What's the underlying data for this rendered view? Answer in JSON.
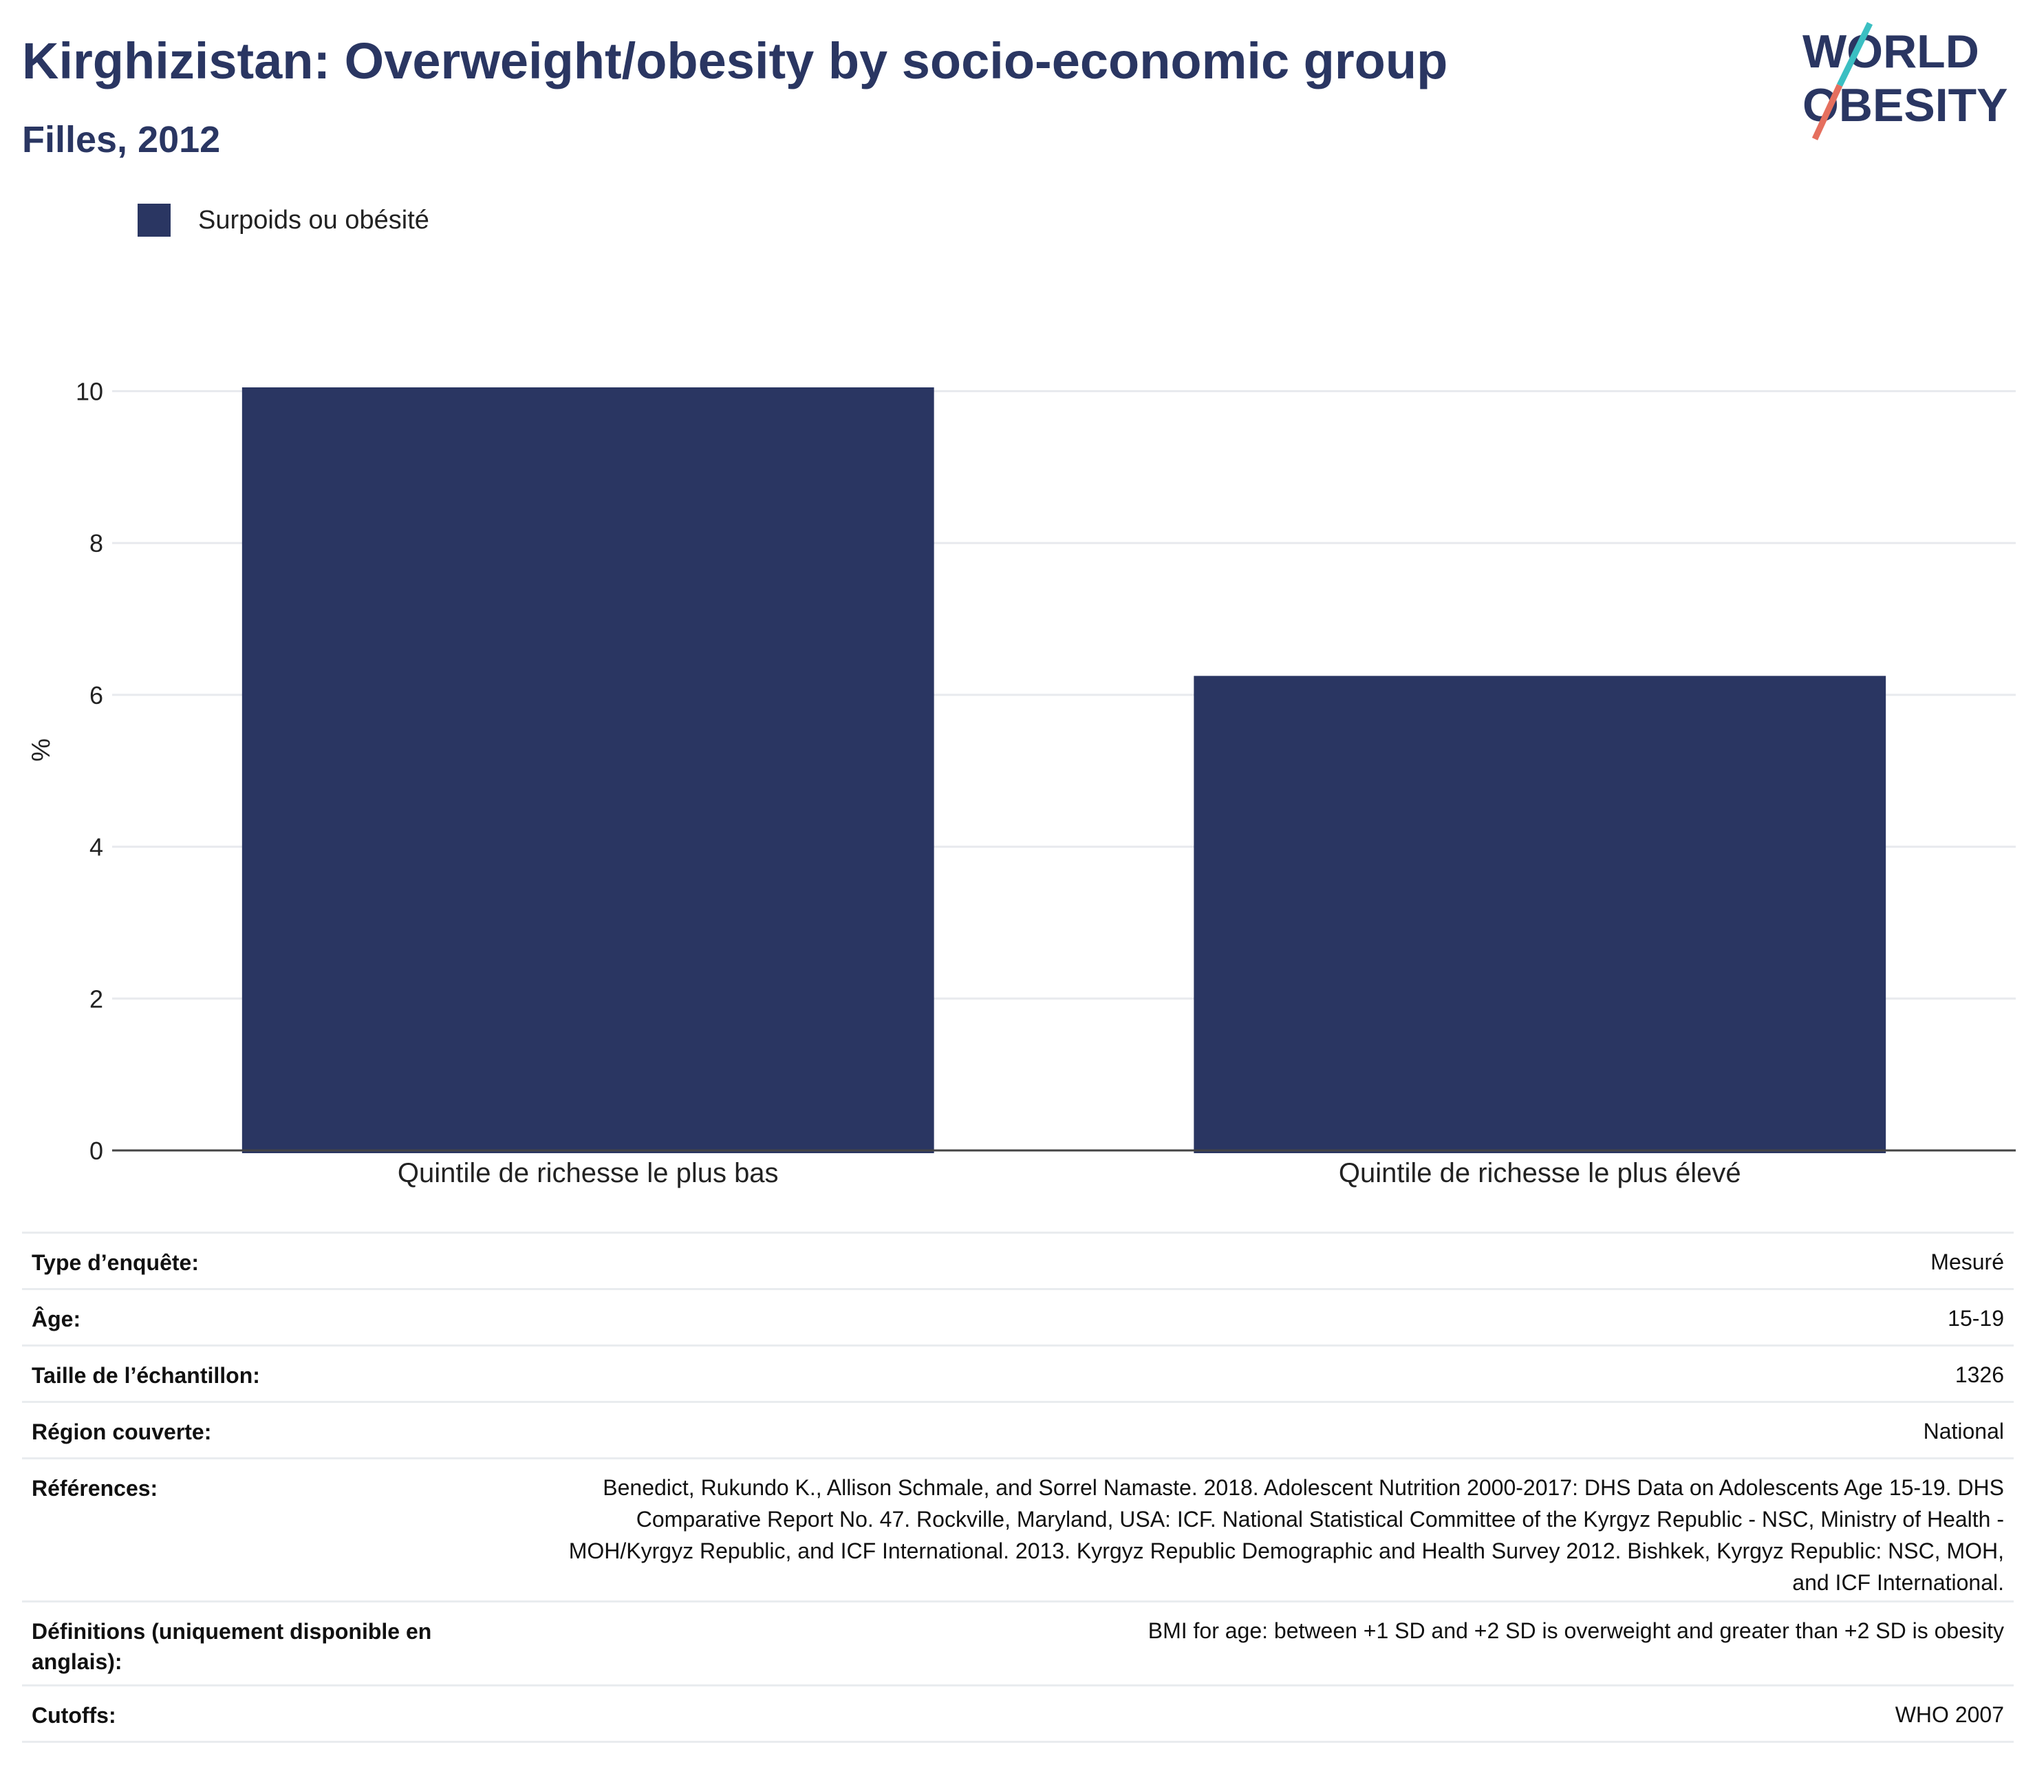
{
  "header": {
    "title": "Kirghizistan: Overweight/obesity by socio-economic group",
    "subtitle": "Filles, 2012"
  },
  "logo": {
    "line1": "WORLD",
    "line2": "OBESITY"
  },
  "legend": {
    "label": "Surpoids ou obésité",
    "color": "#2a3662"
  },
  "chart_data": {
    "type": "bar",
    "categories": [
      "Quintile de richesse le plus bas",
      "Quintile de richesse le plus élevé"
    ],
    "series": [
      {
        "name": "Surpoids ou obésité",
        "values": [
          10.05,
          6.25
        ],
        "color": "#2a3662"
      }
    ],
    "ylabel": "%",
    "ylim": [
      0,
      10.05
    ],
    "yticks": [
      0,
      2,
      4,
      6,
      8,
      10
    ],
    "grid": true,
    "legend_position": "top-left"
  },
  "meta": [
    {
      "key": "Type d’enquête:",
      "value": "Mesuré"
    },
    {
      "key": "Âge:",
      "value": "15-19"
    },
    {
      "key": "Taille de l’échantillon:",
      "value": "1326"
    },
    {
      "key": "Région couverte:",
      "value": "National"
    },
    {
      "key": "Références:",
      "value": "Benedict, Rukundo K., Allison Schmale, and Sorrel Namaste. 2018. Adolescent Nutrition 2000-2017: DHS Data on Adolescents Age 15-19. DHS Comparative Report No. 47. Rockville, Maryland, USA: ICF. National Statistical Committee of the Kyrgyz Republic - NSC, Ministry of Health - MOH/Kyrgyz Republic, and ICF International. 2013. Kyrgyz Republic Demographic and Health Survey 2012. Bishkek, Kyrgyz Republic: NSC, MOH, and ICF International."
    },
    {
      "key": "Définitions (uniquement disponible en anglais):",
      "value": "BMI for age: between +1 SD and +2 SD is overweight and greater than +2 SD is obesity"
    },
    {
      "key": "Cutoffs:",
      "value": "WHO 2007"
    }
  ]
}
